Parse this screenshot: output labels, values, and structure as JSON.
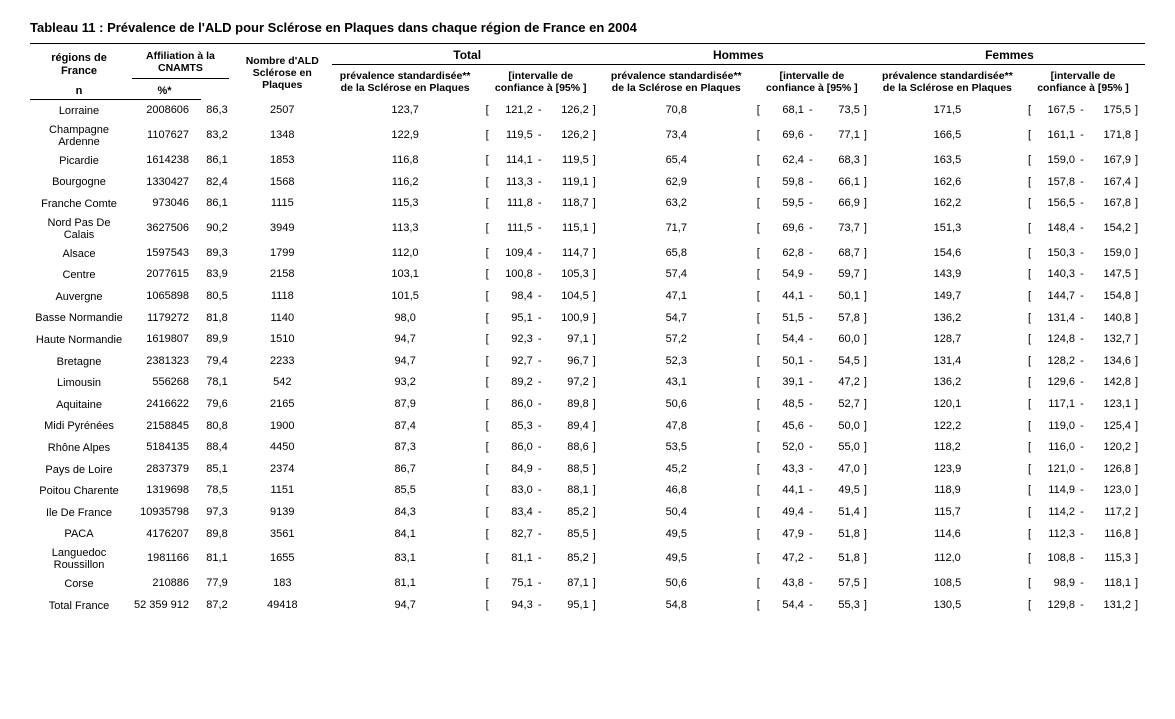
{
  "title": "Tableau 11 : Prévalence de l'ALD pour Sclérose en Plaques dans chaque région de France en 2004",
  "headers": {
    "region": "régions de France",
    "affiliation": "Affiliation à la CNAMTS",
    "n": "n",
    "pct": "%*",
    "nald": "Nombre d'ALD Sclérose en Plaques",
    "group_total": "Total",
    "group_hommes": "Hommes",
    "group_femmes": "Femmes",
    "prev": "prévalence standardisée** de la Sclérose en Plaques",
    "ci": "[intervalle de confiance à [95%  ]",
    "ci_h": "[intervalle de confiance à [95% ]"
  },
  "rows": [
    {
      "region": "Lorraine",
      "n": "2008606",
      "pct": "86,3",
      "nald": "2507",
      "t_prev": "123,7",
      "t_lo": "121,2",
      "t_hi": "126,2",
      "h_prev": "70,8",
      "h_lo": "68,1",
      "h_hi": "73,5",
      "f_prev": "171,5",
      "f_lo": "167,5",
      "f_hi": "175,5"
    },
    {
      "region": "Champagne Ardenne",
      "n": "1107627",
      "pct": "83,2",
      "nald": "1348",
      "t_prev": "122,9",
      "t_lo": "119,5",
      "t_hi": "126,2",
      "h_prev": "73,4",
      "h_lo": "69,6",
      "h_hi": "77,1",
      "f_prev": "166,5",
      "f_lo": "161,1",
      "f_hi": "171,8"
    },
    {
      "region": "Picardie",
      "n": "1614238",
      "pct": "86,1",
      "nald": "1853",
      "t_prev": "116,8",
      "t_lo": "114,1",
      "t_hi": "119,5",
      "h_prev": "65,4",
      "h_lo": "62,4",
      "h_hi": "68,3",
      "f_prev": "163,5",
      "f_lo": "159,0",
      "f_hi": "167,9"
    },
    {
      "region": "Bourgogne",
      "n": "1330427",
      "pct": "82,4",
      "nald": "1568",
      "t_prev": "116,2",
      "t_lo": "113,3",
      "t_hi": "119,1",
      "h_prev": "62,9",
      "h_lo": "59,8",
      "h_hi": "66,1",
      "f_prev": "162,6",
      "f_lo": "157,8",
      "f_hi": "167,4"
    },
    {
      "region": "Franche Comte",
      "n": "973046",
      "pct": "86,1",
      "nald": "1115",
      "t_prev": "115,3",
      "t_lo": "111,8",
      "t_hi": "118,7",
      "h_prev": "63,2",
      "h_lo": "59,5",
      "h_hi": "66,9",
      "f_prev": "162,2",
      "f_lo": "156,5",
      "f_hi": "167,8"
    },
    {
      "region": "Nord Pas De Calais",
      "n": "3627506",
      "pct": "90,2",
      "nald": "3949",
      "t_prev": "113,3",
      "t_lo": "111,5",
      "t_hi": "115,1",
      "h_prev": "71,7",
      "h_lo": "69,6",
      "h_hi": "73,7",
      "f_prev": "151,3",
      "f_lo": "148,4",
      "f_hi": "154,2"
    },
    {
      "region": "Alsace",
      "n": "1597543",
      "pct": "89,3",
      "nald": "1799",
      "t_prev": "112,0",
      "t_lo": "109,4",
      "t_hi": "114,7",
      "h_prev": "65,8",
      "h_lo": "62,8",
      "h_hi": "68,7",
      "f_prev": "154,6",
      "f_lo": "150,3",
      "f_hi": "159,0"
    },
    {
      "region": "Centre",
      "n": "2077615",
      "pct": "83,9",
      "nald": "2158",
      "t_prev": "103,1",
      "t_lo": "100,8",
      "t_hi": "105,3",
      "h_prev": "57,4",
      "h_lo": "54,9",
      "h_hi": "59,7",
      "f_prev": "143,9",
      "f_lo": "140,3",
      "f_hi": "147,5"
    },
    {
      "region": "Auvergne",
      "n": "1065898",
      "pct": "80,5",
      "nald": "1118",
      "t_prev": "101,5",
      "t_lo": "98,4",
      "t_hi": "104,5",
      "h_prev": "47,1",
      "h_lo": "44,1",
      "h_hi": "50,1",
      "f_prev": "149,7",
      "f_lo": "144,7",
      "f_hi": "154,8"
    },
    {
      "region": "Basse Normandie",
      "n": "1179272",
      "pct": "81,8",
      "nald": "1140",
      "t_prev": "98,0",
      "t_lo": "95,1",
      "t_hi": "100,9",
      "h_prev": "54,7",
      "h_lo": "51,5",
      "h_hi": "57,8",
      "f_prev": "136,2",
      "f_lo": "131,4",
      "f_hi": "140,8"
    },
    {
      "region": "Haute Normandie",
      "n": "1619807",
      "pct": "89,9",
      "nald": "1510",
      "t_prev": "94,7",
      "t_lo": "92,3",
      "t_hi": "97,1",
      "h_prev": "57,2",
      "h_lo": "54,4",
      "h_hi": "60,0",
      "f_prev": "128,7",
      "f_lo": "124,8",
      "f_hi": "132,7"
    },
    {
      "region": "Bretagne",
      "n": "2381323",
      "pct": "79,4",
      "nald": "2233",
      "t_prev": "94,7",
      "t_lo": "92,7",
      "t_hi": "96,7",
      "h_prev": "52,3",
      "h_lo": "50,1",
      "h_hi": "54,5",
      "f_prev": "131,4",
      "f_lo": "128,2",
      "f_hi": "134,6"
    },
    {
      "region": "Limousin",
      "n": "556268",
      "pct": "78,1",
      "nald": "542",
      "t_prev": "93,2",
      "t_lo": "89,2",
      "t_hi": "97,2",
      "h_prev": "43,1",
      "h_lo": "39,1",
      "h_hi": "47,2",
      "f_prev": "136,2",
      "f_lo": "129,6",
      "f_hi": "142,8"
    },
    {
      "region": "Aquitaine",
      "n": "2416622",
      "pct": "79,6",
      "nald": "2165",
      "t_prev": "87,9",
      "t_lo": "86,0",
      "t_hi": "89,8",
      "h_prev": "50,6",
      "h_lo": "48,5",
      "h_hi": "52,7",
      "f_prev": "120,1",
      "f_lo": "117,1",
      "f_hi": "123,1"
    },
    {
      "region": "Midi Pyrénées",
      "n": "2158845",
      "pct": "80,8",
      "nald": "1900",
      "t_prev": "87,4",
      "t_lo": "85,3",
      "t_hi": "89,4",
      "h_prev": "47,8",
      "h_lo": "45,6",
      "h_hi": "50,0",
      "f_prev": "122,2",
      "f_lo": "119,0",
      "f_hi": "125,4"
    },
    {
      "region": "Rhône Alpes",
      "n": "5184135",
      "pct": "88,4",
      "nald": "4450",
      "t_prev": "87,3",
      "t_lo": "86,0",
      "t_hi": "88,6",
      "h_prev": "53,5",
      "h_lo": "52,0",
      "h_hi": "55,0",
      "f_prev": "118,2",
      "f_lo": "116,0",
      "f_hi": "120,2"
    },
    {
      "region": "Pays de Loire",
      "n": "2837379",
      "pct": "85,1",
      "nald": "2374",
      "t_prev": "86,7",
      "t_lo": "84,9",
      "t_hi": "88,5",
      "h_prev": "45,2",
      "h_lo": "43,3",
      "h_hi": "47,0",
      "f_prev": "123,9",
      "f_lo": "121,0",
      "f_hi": "126,8"
    },
    {
      "region": "Poitou Charente",
      "n": "1319698",
      "pct": "78,5",
      "nald": "1151",
      "t_prev": "85,5",
      "t_lo": "83,0",
      "t_hi": "88,1",
      "h_prev": "46,8",
      "h_lo": "44,1",
      "h_hi": "49,5",
      "f_prev": "118,9",
      "f_lo": "114,9",
      "f_hi": "123,0"
    },
    {
      "region": "Ile De France",
      "n": "10935798",
      "pct": "97,3",
      "nald": "9139",
      "t_prev": "84,3",
      "t_lo": "83,4",
      "t_hi": "85,2",
      "h_prev": "50,4",
      "h_lo": "49,4",
      "h_hi": "51,4",
      "f_prev": "115,7",
      "f_lo": "114,2",
      "f_hi": "117,2"
    },
    {
      "region": "PACA",
      "n": "4176207",
      "pct": "89,8",
      "nald": "3561",
      "t_prev": "84,1",
      "t_lo": "82,7",
      "t_hi": "85,5",
      "h_prev": "49,5",
      "h_lo": "47,9",
      "h_hi": "51,8",
      "f_prev": "114,6",
      "f_lo": "112,3",
      "f_hi": "116,8"
    },
    {
      "region": "Languedoc Roussillon",
      "n": "1981166",
      "pct": "81,1",
      "nald": "1655",
      "t_prev": "83,1",
      "t_lo": "81,1",
      "t_hi": "85,2",
      "h_prev": "49,5",
      "h_lo": "47,2",
      "h_hi": "51,8",
      "f_prev": "112,0",
      "f_lo": "108,8",
      "f_hi": "115,3"
    },
    {
      "region": "Corse",
      "n": "210886",
      "pct": "77,9",
      "nald": "183",
      "t_prev": "81,1",
      "t_lo": "75,1",
      "t_hi": "87,1",
      "h_prev": "50,6",
      "h_lo": "43,8",
      "h_hi": "57,5",
      "f_prev": "108,5",
      "f_lo": "98,9",
      "f_hi": "118,1"
    },
    {
      "region": "Total France",
      "n": "52 359 912",
      "pct": "87,2",
      "nald": "49418",
      "t_prev": "94,7",
      "t_lo": "94,3",
      "t_hi": "95,1",
      "h_prev": "54,8",
      "h_lo": "54,4",
      "h_hi": "55,3",
      "f_prev": "130,5",
      "f_lo": "129,8",
      "f_hi": "131,2"
    }
  ]
}
